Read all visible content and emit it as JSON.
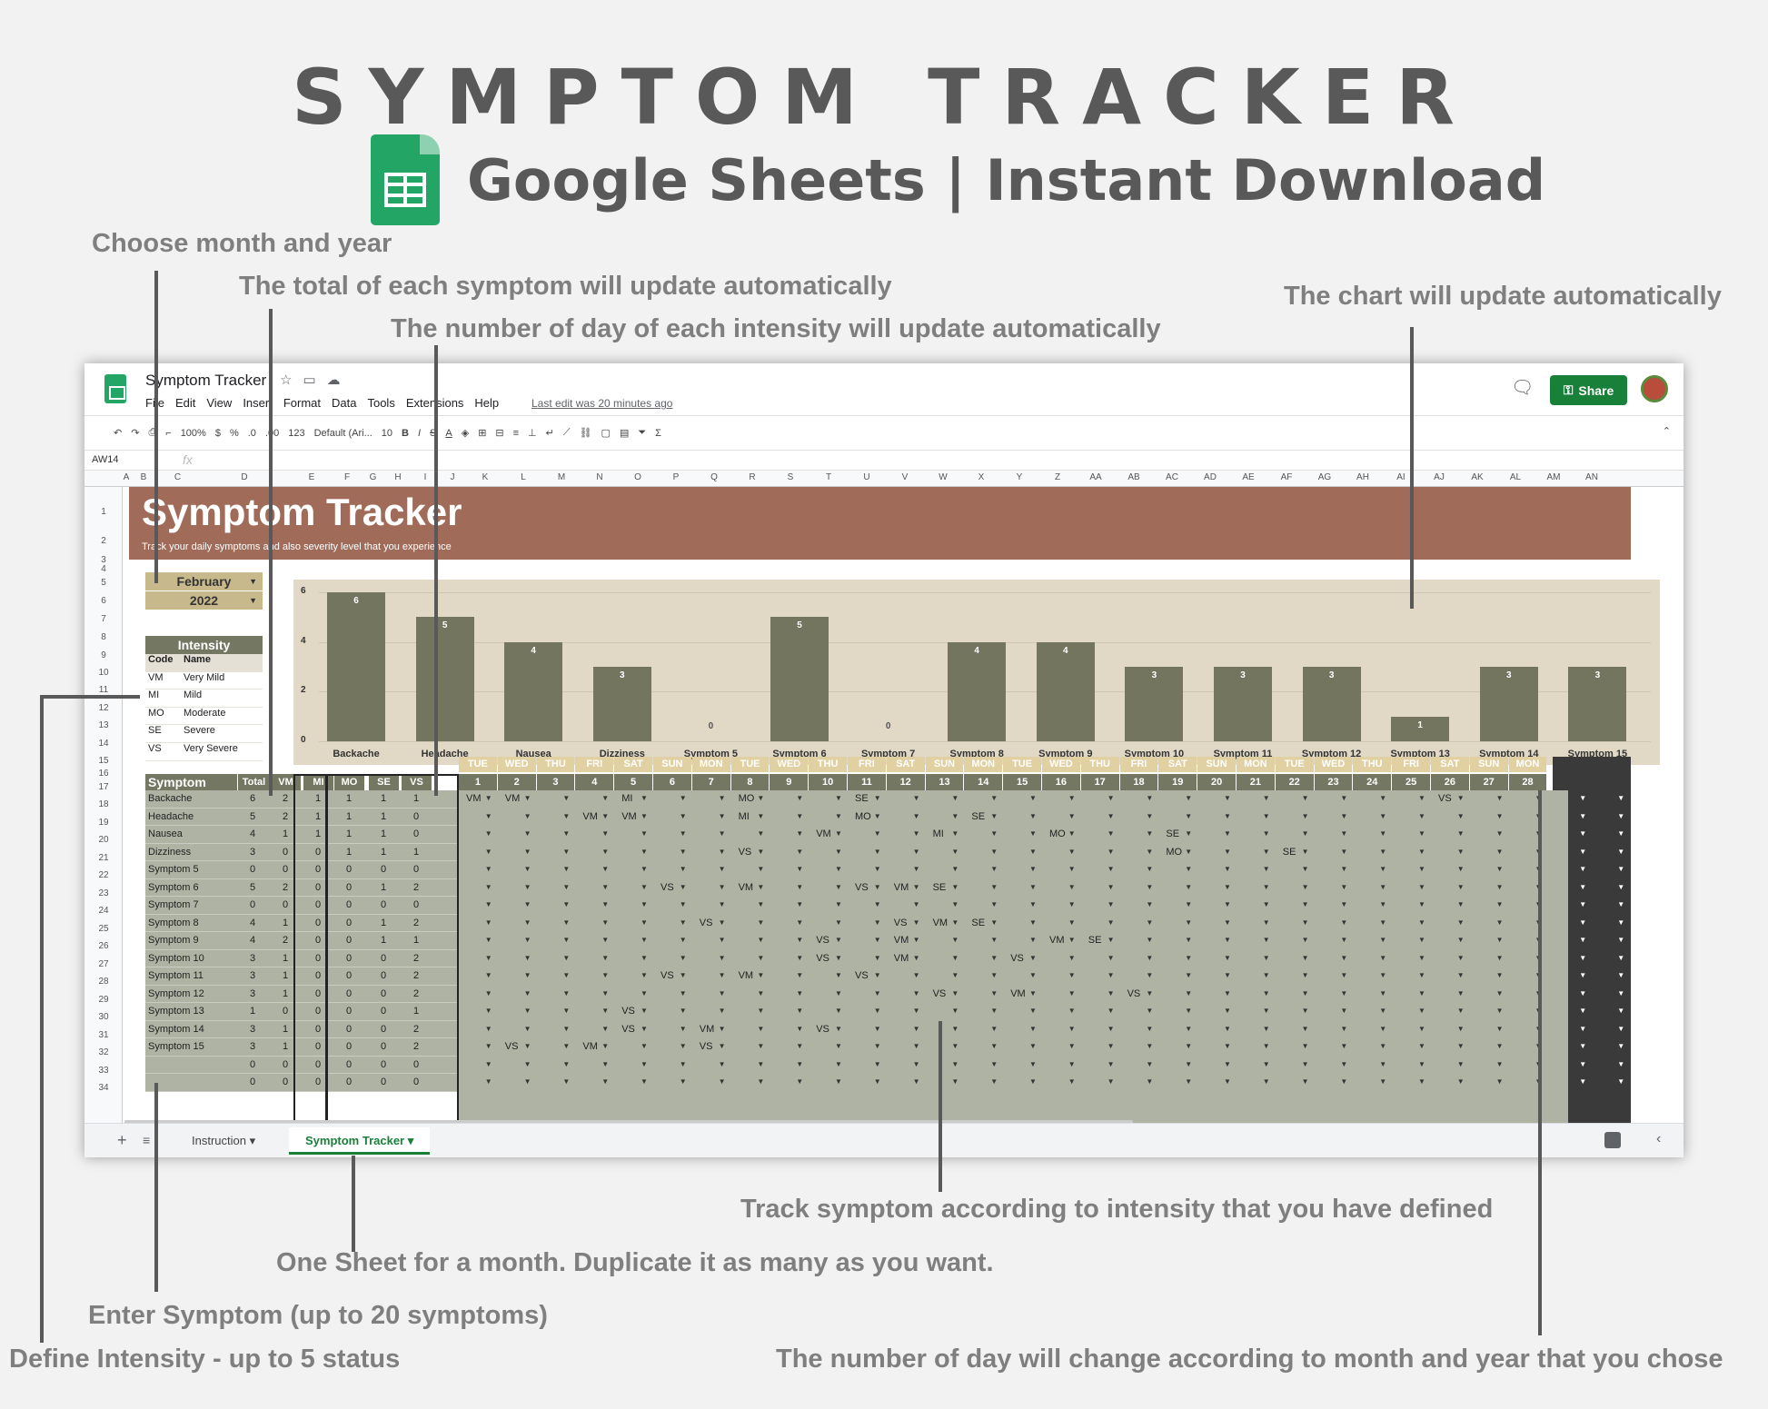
{
  "hero": {
    "title": "SYMPTOM TRACKER",
    "subtitle": "Google Sheets | Instant Download"
  },
  "annotations": {
    "month_year": "Choose month and year",
    "total": "The total of each symptom will update automatically",
    "intensity_days": "The number of day of each intensity will update automatically",
    "chart": "The chart will update automatically",
    "track": "Track symptom according to intensity that you have defined",
    "one_sheet": "One Sheet for a month. Duplicate it as many as you want.",
    "enter_symptom": "Enter Symptom (up to 20 symptoms)",
    "define_intensity": "Define Intensity - up to 5 status",
    "days_change": "The number of day will change according to month and year that you chose"
  },
  "window": {
    "doc_title": "Symptom Tracker",
    "menu": [
      "File",
      "Edit",
      "View",
      "Insert",
      "Format",
      "Data",
      "Tools",
      "Extensions",
      "Help"
    ],
    "last_edit": "Last edit was 20 minutes ago",
    "share_label": "Share",
    "toolbar": {
      "zoom": "100%",
      "currency": "$",
      "percent": "%",
      "dec_dec": ".0",
      "inc_dec": ".00",
      "format": "123",
      "font": "Default (Ari...",
      "font_size": "10"
    },
    "name_box": "AW14",
    "fx": "fx",
    "columns": [
      "A",
      "B",
      "C",
      "D",
      "E",
      "F",
      "G",
      "H",
      "I",
      "J",
      "K",
      "L",
      "M",
      "N",
      "O",
      "P",
      "Q",
      "R",
      "S",
      "T",
      "U",
      "V",
      "W",
      "X",
      "Y",
      "Z",
      "AA",
      "AB",
      "AC",
      "AD",
      "AE",
      "AF",
      "AG",
      "AH",
      "AI",
      "AJ",
      "AK",
      "AL",
      "AM",
      "AN"
    ],
    "rows": [
      "1",
      "2",
      "3",
      "4",
      "5",
      "6",
      "7",
      "8",
      "9",
      "10",
      "11",
      "12",
      "13",
      "14",
      "15",
      "16",
      "17",
      "18",
      "19",
      "20",
      "21",
      "22",
      "23",
      "24",
      "25",
      "26",
      "27",
      "28",
      "29",
      "30",
      "31",
      "32",
      "33",
      "34"
    ],
    "tabs": [
      "Instruction",
      "Symptom Tracker"
    ]
  },
  "sheet": {
    "title": "Symptom Tracker",
    "subtitle": "Track your daily symptoms and also severity level that you experience",
    "month": "February",
    "year": "2022",
    "intensity_title": "Intensity",
    "intensity_headers": [
      "Code",
      "Name"
    ],
    "intensity": [
      [
        "VM",
        "Very Mild"
      ],
      [
        "MI",
        "Mild"
      ],
      [
        "MO",
        "Moderate"
      ],
      [
        "SE",
        "Severe"
      ],
      [
        "VS",
        "Very Severe"
      ]
    ],
    "symptom_header": "Symptom",
    "total_headers": [
      "Total",
      "VM",
      "MI",
      "MO",
      "SE",
      "VS"
    ],
    "weekdays": [
      "TUE",
      "WED",
      "THU",
      "FRI",
      "SAT",
      "SUN",
      "MON",
      "TUE",
      "WED",
      "THU",
      "FRI",
      "SAT",
      "SUN",
      "MON",
      "TUE",
      "WED",
      "THU",
      "FRI",
      "SAT",
      "SUN",
      "MON",
      "TUE",
      "WED",
      "THU",
      "FRI",
      "SAT",
      "SUN",
      "MON"
    ],
    "days": [
      "1",
      "2",
      "3",
      "4",
      "5",
      "6",
      "7",
      "8",
      "9",
      "10",
      "11",
      "12",
      "13",
      "14",
      "15",
      "16",
      "17",
      "18",
      "19",
      "20",
      "21",
      "22",
      "23",
      "24",
      "25",
      "26",
      "27",
      "28"
    ],
    "symptoms": [
      {
        "name": "Backache",
        "totals": [
          "6",
          "2",
          "1",
          "1",
          "1",
          "1"
        ]
      },
      {
        "name": "Headache",
        "totals": [
          "5",
          "2",
          "1",
          "1",
          "1",
          "0"
        ]
      },
      {
        "name": "Nausea",
        "totals": [
          "4",
          "1",
          "1",
          "1",
          "1",
          "0"
        ]
      },
      {
        "name": "Dizziness",
        "totals": [
          "3",
          "0",
          "0",
          "1",
          "1",
          "1"
        ]
      },
      {
        "name": "Symptom 5",
        "totals": [
          "0",
          "0",
          "0",
          "0",
          "0",
          "0"
        ]
      },
      {
        "name": "Symptom 6",
        "totals": [
          "5",
          "2",
          "0",
          "0",
          "1",
          "2"
        ]
      },
      {
        "name": "Symptom 7",
        "totals": [
          "0",
          "0",
          "0",
          "0",
          "0",
          "0"
        ]
      },
      {
        "name": "Symptom 8",
        "totals": [
          "4",
          "1",
          "0",
          "0",
          "1",
          "2"
        ]
      },
      {
        "name": "Symptom 9",
        "totals": [
          "4",
          "2",
          "0",
          "0",
          "1",
          "1"
        ]
      },
      {
        "name": "Symptom 10",
        "totals": [
          "3",
          "1",
          "0",
          "0",
          "0",
          "2"
        ]
      },
      {
        "name": "Symptom 11",
        "totals": [
          "3",
          "1",
          "0",
          "0",
          "0",
          "2"
        ]
      },
      {
        "name": "Symptom 12",
        "totals": [
          "3",
          "1",
          "0",
          "0",
          "0",
          "2"
        ]
      },
      {
        "name": "Symptom 13",
        "totals": [
          "1",
          "0",
          "0",
          "0",
          "0",
          "1"
        ]
      },
      {
        "name": "Symptom 14",
        "totals": [
          "3",
          "1",
          "0",
          "0",
          "0",
          "2"
        ]
      },
      {
        "name": "Symptom 15",
        "totals": [
          "3",
          "1",
          "0",
          "0",
          "0",
          "2"
        ]
      },
      {
        "name": "",
        "totals": [
          "0",
          "0",
          "0",
          "0",
          "0",
          "0"
        ]
      },
      {
        "name": "",
        "totals": [
          "0",
          "0",
          "0",
          "0",
          "0",
          "0"
        ]
      }
    ],
    "entries": [
      [
        0,
        1,
        "VM"
      ],
      [
        0,
        2,
        "VM"
      ],
      [
        0,
        5,
        "MI"
      ],
      [
        0,
        8,
        "MO"
      ],
      [
        0,
        11,
        "SE"
      ],
      [
        0,
        26,
        "VS"
      ],
      [
        1,
        4,
        "VM"
      ],
      [
        1,
        5,
        "VM"
      ],
      [
        1,
        8,
        "MI"
      ],
      [
        1,
        11,
        "MO"
      ],
      [
        1,
        14,
        "SE"
      ],
      [
        2,
        10,
        "VM"
      ],
      [
        2,
        13,
        "MI"
      ],
      [
        2,
        16,
        "MO"
      ],
      [
        2,
        19,
        "SE"
      ],
      [
        3,
        8,
        "VS"
      ],
      [
        3,
        19,
        "MO"
      ],
      [
        3,
        22,
        "SE"
      ],
      [
        5,
        6,
        "VS"
      ],
      [
        5,
        8,
        "VM"
      ],
      [
        5,
        11,
        "VS"
      ],
      [
        5,
        12,
        "VM"
      ],
      [
        5,
        13,
        "SE"
      ],
      [
        7,
        7,
        "VS"
      ],
      [
        7,
        12,
        "VS"
      ],
      [
        7,
        13,
        "VM"
      ],
      [
        7,
        14,
        "SE"
      ],
      [
        8,
        10,
        "VS"
      ],
      [
        8,
        12,
        "VM"
      ],
      [
        8,
        16,
        "VM"
      ],
      [
        8,
        17,
        "SE"
      ],
      [
        9,
        10,
        "VS"
      ],
      [
        9,
        12,
        "VM"
      ],
      [
        9,
        15,
        "VS"
      ],
      [
        10,
        6,
        "VS"
      ],
      [
        10,
        8,
        "VM"
      ],
      [
        10,
        11,
        "VS"
      ],
      [
        11,
        13,
        "VS"
      ],
      [
        11,
        15,
        "VM"
      ],
      [
        11,
        18,
        "VS"
      ],
      [
        12,
        5,
        "VS"
      ],
      [
        13,
        5,
        "VS"
      ],
      [
        13,
        7,
        "VM"
      ],
      [
        13,
        10,
        "VS"
      ],
      [
        14,
        2,
        "VS"
      ],
      [
        14,
        4,
        "VM"
      ],
      [
        14,
        7,
        "VS"
      ]
    ]
  },
  "chart_data": {
    "type": "bar",
    "categories": [
      "Backache",
      "Headache",
      "Nausea",
      "Dizziness",
      "Symptom 5",
      "Symptom 6",
      "Symptom 7",
      "Symptom 8",
      "Symptom 9",
      "Symptom 10",
      "Symptom 11",
      "Symptom 12",
      "Symptom 13",
      "Symptom 14",
      "Symptom 15"
    ],
    "values": [
      6,
      5,
      4,
      3,
      0,
      5,
      0,
      4,
      4,
      3,
      3,
      3,
      1,
      3,
      3
    ],
    "yticks": [
      "0",
      "2",
      "4",
      "6"
    ],
    "ylim": [
      0,
      6.5
    ],
    "bar_color": "#74755f",
    "background": "#e1d8c5"
  }
}
